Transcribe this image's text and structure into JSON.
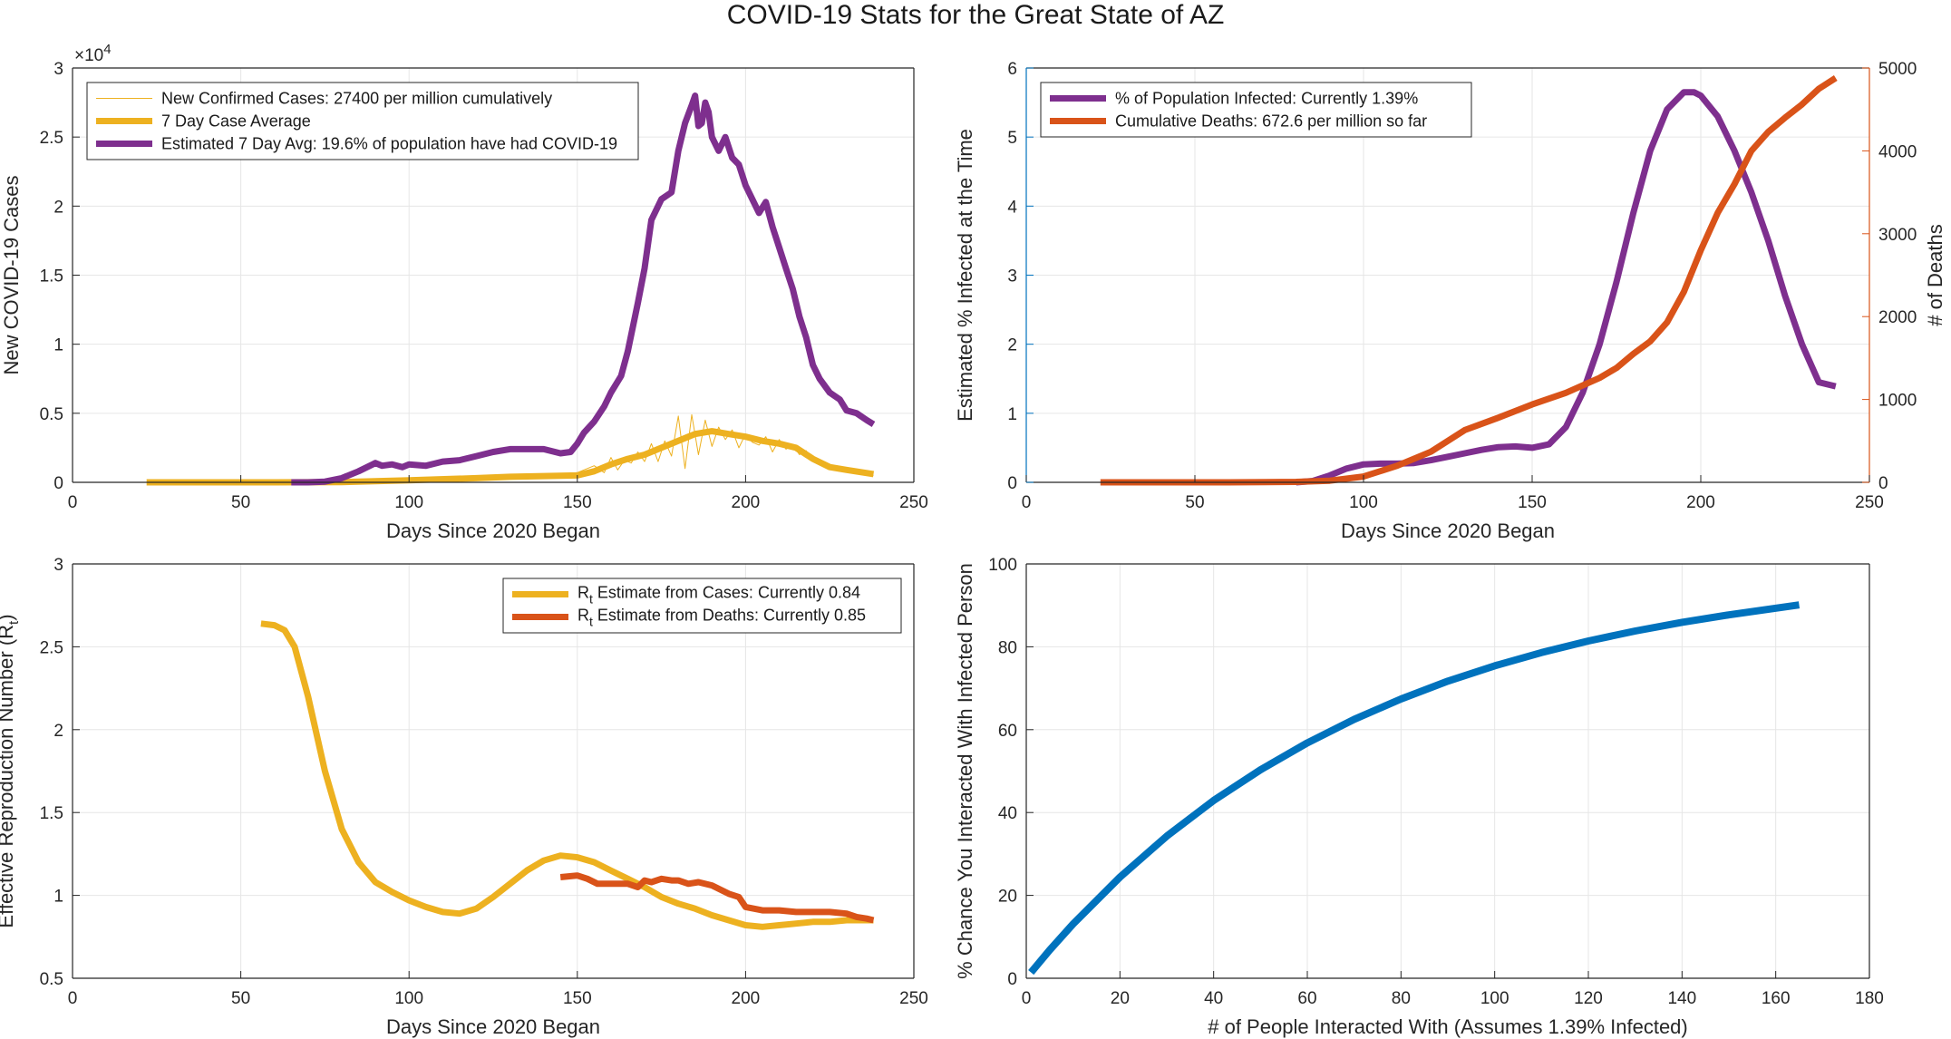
{
  "figure": {
    "title": "COVID-19 Stats for the Great State of AZ"
  },
  "colors": {
    "purple": "#7e2f8e",
    "yellow": "#edb120",
    "orange": "#d95319",
    "blue": "#0072bd",
    "grid": "#e6e6e6",
    "axis": "#262626"
  },
  "chart_data": [
    {
      "id": "cases",
      "type": "line",
      "xlabel": "Days Since 2020 Began",
      "ylabel": "New COVID-19 Cases",
      "y_exponent_label": "×10",
      "y_exponent_power": "4",
      "xlim": [
        0,
        250
      ],
      "ylim": [
        0,
        30000
      ],
      "xticks": [
        0,
        50,
        100,
        150,
        200,
        250
      ],
      "yticks": [
        0,
        5000,
        10000,
        15000,
        20000,
        25000,
        30000
      ],
      "ytick_labels": [
        "0",
        "0.5",
        "1",
        "1.5",
        "2",
        "2.5",
        "3"
      ],
      "grid": true,
      "legend_position": "top-left",
      "series": [
        {
          "name": "New Confirmed Cases: 27400 per million cumulatively",
          "color": "#edb120",
          "width": 1,
          "x": [
            22,
            60,
            100,
            120,
            140,
            150,
            155,
            158,
            160,
            162,
            164,
            166,
            168,
            170,
            172,
            174,
            176,
            178,
            180,
            182,
            184,
            186,
            188,
            190,
            192,
            194,
            196,
            198,
            200,
            202,
            204,
            206,
            208,
            210,
            212,
            214,
            216,
            218,
            220,
            225,
            230,
            238
          ],
          "y": [
            0,
            10,
            150,
            400,
            500,
            700,
            1200,
            700,
            1800,
            900,
            1600,
            1400,
            2200,
            1500,
            2800,
            1500,
            3000,
            1900,
            4800,
            1000,
            4900,
            2000,
            4500,
            2600,
            4000,
            3100,
            3800,
            2500,
            3500,
            2900,
            2700,
            3300,
            2200,
            3100,
            2400,
            2700,
            2000,
            2300,
            1500,
            1000,
            800,
            500
          ]
        },
        {
          "name": "7 Day Case Average",
          "color": "#edb120",
          "width": 7,
          "x": [
            22,
            60,
            80,
            100,
            120,
            130,
            140,
            150,
            155,
            160,
            165,
            170,
            175,
            180,
            185,
            190,
            195,
            200,
            205,
            210,
            215,
            220,
            225,
            230,
            238
          ],
          "y": [
            0,
            0,
            20,
            150,
            300,
            400,
            450,
            500,
            800,
            1300,
            1700,
            2000,
            2500,
            3000,
            3500,
            3700,
            3500,
            3300,
            3000,
            2800,
            2500,
            1700,
            1100,
            900,
            600
          ]
        },
        {
          "name": "Estimated 7 Day Avg: 19.6% of population have had COVID-19",
          "color": "#7e2f8e",
          "width": 7,
          "x": [
            65,
            70,
            75,
            80,
            85,
            90,
            92,
            95,
            98,
            100,
            105,
            110,
            115,
            120,
            125,
            130,
            135,
            140,
            145,
            148,
            150,
            152,
            155,
            158,
            160,
            163,
            165,
            168,
            170,
            172,
            175,
            178,
            180,
            182,
            184,
            185,
            186,
            187,
            188,
            189,
            190,
            192,
            194,
            196,
            198,
            200,
            202,
            204,
            206,
            208,
            210,
            212,
            214,
            216,
            218,
            220,
            222,
            225,
            228,
            230,
            233,
            236,
            238
          ],
          "y": [
            0,
            0,
            50,
            300,
            800,
            1400,
            1200,
            1300,
            1100,
            1300,
            1200,
            1500,
            1600,
            1900,
            2200,
            2400,
            2400,
            2400,
            2100,
            2200,
            2800,
            3600,
            4400,
            5500,
            6500,
            7700,
            9500,
            13000,
            15500,
            19000,
            20500,
            21000,
            24000,
            26000,
            27300,
            28000,
            25800,
            26000,
            27500,
            26800,
            25000,
            24000,
            25000,
            23500,
            23000,
            21500,
            20500,
            19500,
            20300,
            18500,
            17000,
            15500,
            14000,
            12000,
            10500,
            8500,
            7500,
            6500,
            6000,
            5200,
            5000,
            4500,
            4200
          ]
        }
      ]
    },
    {
      "id": "infected-deaths",
      "type": "line",
      "xlabel": "Days Since 2020 Began",
      "ylabel": "Estimated % Infected at the Time",
      "y2label": "# of Deaths",
      "xlim": [
        0,
        250
      ],
      "ylim": [
        0,
        6
      ],
      "y2lim": [
        0,
        5000
      ],
      "xticks": [
        0,
        50,
        100,
        150,
        200,
        250
      ],
      "yticks": [
        0,
        1,
        2,
        3,
        4,
        5,
        6
      ],
      "y2ticks": [
        0,
        1000,
        2000,
        3000,
        4000,
        5000
      ],
      "grid": true,
      "legend_position": "top-left",
      "series": [
        {
          "name": "% of Population Infected: Currently 1.39%",
          "color": "#7e2f8e",
          "width": 7,
          "axis": "left",
          "x": [
            80,
            85,
            90,
            95,
            100,
            105,
            110,
            115,
            120,
            125,
            130,
            135,
            140,
            145,
            150,
            155,
            160,
            165,
            170,
            175,
            180,
            185,
            190,
            195,
            198,
            200,
            205,
            210,
            215,
            220,
            225,
            230,
            235,
            240
          ],
          "y": [
            0,
            0.02,
            0.1,
            0.2,
            0.26,
            0.27,
            0.27,
            0.28,
            0.32,
            0.37,
            0.42,
            0.47,
            0.51,
            0.52,
            0.5,
            0.55,
            0.8,
            1.3,
            2.0,
            2.9,
            3.9,
            4.8,
            5.4,
            5.65,
            5.65,
            5.6,
            5.3,
            4.8,
            4.2,
            3.5,
            2.7,
            2.0,
            1.45,
            1.39
          ]
        },
        {
          "name": "Cumulative Deaths: 672.6 per million so far",
          "color": "#d95319",
          "width": 7,
          "axis": "right",
          "x": [
            22,
            60,
            80,
            90,
            100,
            110,
            120,
            130,
            140,
            150,
            160,
            170,
            175,
            180,
            185,
            190,
            195,
            200,
            205,
            210,
            215,
            220,
            225,
            230,
            235,
            240
          ],
          "y": [
            0,
            0,
            5,
            20,
            70,
            200,
            370,
            630,
            780,
            940,
            1080,
            1260,
            1380,
            1550,
            1700,
            1930,
            2300,
            2800,
            3250,
            3600,
            4000,
            4230,
            4400,
            4560,
            4750,
            4880
          ]
        }
      ]
    },
    {
      "id": "rt",
      "type": "line",
      "xlabel": "Days Since 2020 Began",
      "ylabel": "Effective Reproduction Number (R",
      "ylabel_sub": "t",
      "ylabel_tail": ")",
      "xlim": [
        0,
        250
      ],
      "ylim": [
        0.5,
        3
      ],
      "xticks": [
        0,
        50,
        100,
        150,
        200,
        250
      ],
      "yticks": [
        0.5,
        1,
        1.5,
        2,
        2.5,
        3
      ],
      "grid": true,
      "legend_position": "top-right",
      "series": [
        {
          "name_main": "R",
          "name_sub": "t",
          "name_rest": " Estimate from Cases: Currently 0.84",
          "color": "#edb120",
          "width": 7,
          "x": [
            56,
            60,
            63,
            66,
            70,
            75,
            80,
            85,
            90,
            95,
            100,
            105,
            110,
            115,
            120,
            125,
            130,
            135,
            140,
            145,
            150,
            155,
            160,
            165,
            170,
            175,
            180,
            185,
            190,
            195,
            200,
            205,
            210,
            215,
            220,
            225,
            230,
            238
          ],
          "y": [
            2.64,
            2.63,
            2.6,
            2.5,
            2.2,
            1.75,
            1.4,
            1.2,
            1.08,
            1.02,
            0.97,
            0.93,
            0.9,
            0.89,
            0.92,
            0.99,
            1.07,
            1.15,
            1.21,
            1.24,
            1.23,
            1.2,
            1.15,
            1.1,
            1.05,
            0.99,
            0.95,
            0.92,
            0.88,
            0.85,
            0.82,
            0.81,
            0.82,
            0.83,
            0.84,
            0.84,
            0.85,
            0.85
          ]
        },
        {
          "name_main": "R",
          "name_sub": "t",
          "name_rest": " Estimate from Deaths: Currently 0.85",
          "color": "#d95319",
          "width": 7,
          "x": [
            145,
            150,
            153,
            156,
            160,
            165,
            168,
            170,
            172,
            175,
            178,
            180,
            183,
            186,
            190,
            195,
            198,
            200,
            205,
            210,
            215,
            220,
            225,
            230,
            233,
            236,
            238
          ],
          "y": [
            1.11,
            1.12,
            1.1,
            1.07,
            1.07,
            1.07,
            1.05,
            1.09,
            1.08,
            1.1,
            1.09,
            1.09,
            1.07,
            1.08,
            1.06,
            1.01,
            0.99,
            0.93,
            0.91,
            0.91,
            0.9,
            0.9,
            0.9,
            0.89,
            0.87,
            0.86,
            0.85
          ]
        }
      ]
    },
    {
      "id": "interaction",
      "type": "line",
      "xlabel": "# of People Interacted With (Assumes 1.39% Infected)",
      "ylabel": "% Chance You Interacted With Infected Person",
      "xlim": [
        0,
        180
      ],
      "ylim": [
        0,
        100
      ],
      "xticks": [
        0,
        20,
        40,
        60,
        80,
        100,
        120,
        140,
        160,
        180
      ],
      "yticks": [
        0,
        20,
        40,
        60,
        80,
        100
      ],
      "grid": true,
      "series": [
        {
          "name": "",
          "color": "#0072bd",
          "width": 8,
          "x": [
            1,
            5,
            10,
            20,
            30,
            40,
            50,
            60,
            70,
            80,
            90,
            100,
            110,
            120,
            130,
            140,
            150,
            165
          ],
          "y": [
            1.4,
            6.8,
            13.1,
            24.4,
            34.3,
            42.9,
            50.3,
            56.8,
            62.5,
            67.4,
            71.7,
            75.4,
            78.6,
            81.4,
            83.8,
            85.9,
            87.7,
            90.1
          ]
        }
      ]
    }
  ]
}
